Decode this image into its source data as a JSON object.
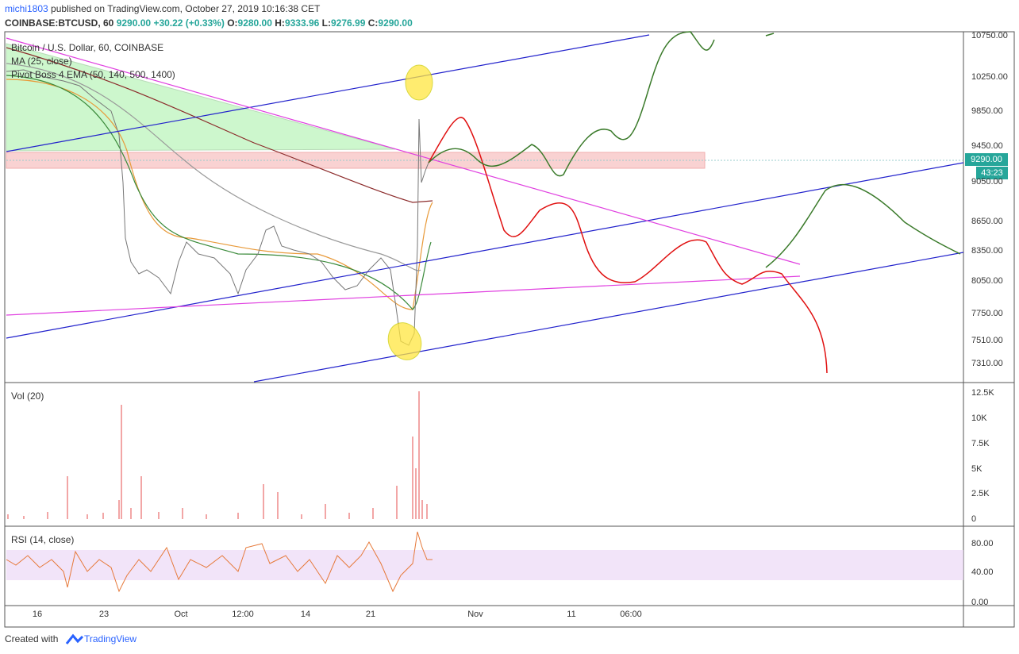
{
  "header": {
    "author": "michi1803",
    "published": "published on TradingView.com, October 27, 2019 10:16:38 CET"
  },
  "quote": {
    "symbol": "COINBASE:BTCUSD, 60",
    "last": "9290.00",
    "change": "+30.22 (+0.33%)",
    "o_label": "O:",
    "o": "9280.00",
    "h_label": "H:",
    "h": "9333.96",
    "l_label": "L:",
    "l": "9276.99",
    "c_label": "C:",
    "c": "9290.00"
  },
  "legend": {
    "title": "Bitcoin / U.S. Dollar, 60, COINBASE",
    "ma": "MA (25, close)",
    "ema": "Pivot Boss 4 EMA (50, 140, 500, 1400)"
  },
  "price_axis": [
    "10750.00",
    "10250.00",
    "9850.00",
    "9450.00",
    "9050.00",
    "8650.00",
    "8350.00",
    "8050.00",
    "7750.00",
    "7510.00",
    "7310.00"
  ],
  "price_tag": "9290.00",
  "countdown": "43:23",
  "volume": {
    "title": "Vol (20)",
    "ticks": [
      "12.5K",
      "10K",
      "7.5K",
      "5K",
      "2.5K",
      "0"
    ]
  },
  "rsi": {
    "title": "RSI (14, close)",
    "ticks": [
      "80.00",
      "40.00",
      "0.00"
    ]
  },
  "time_axis": [
    "16",
    "23",
    "Oct",
    "12:00",
    "14",
    "21",
    "Nov",
    "11",
    "06:00"
  ],
  "footer": {
    "created": "Created with",
    "brand": "TradingView"
  }
}
